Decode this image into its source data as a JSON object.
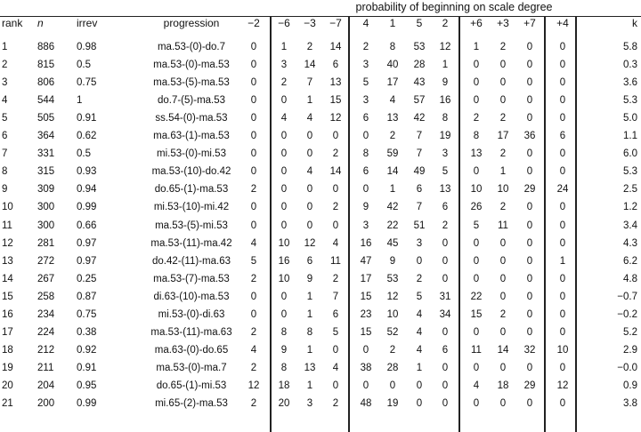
{
  "table": {
    "group_header": "probability of beginning on scale degree",
    "columns": [
      "rank",
      "n",
      "irrev",
      "progression",
      "−2",
      "−6",
      "−3",
      "−7",
      "4",
      "1",
      "5",
      "2",
      "+6",
      "+3",
      "+7",
      "+4",
      "k"
    ],
    "rows": [
      [
        "1",
        "886",
        "0.98",
        "ma.53-(0)-do.7",
        "0",
        "1",
        "2",
        "14",
        "2",
        "8",
        "53",
        "12",
        "1",
        "2",
        "0",
        "0",
        "5.8"
      ],
      [
        "2",
        "815",
        "0.5",
        "ma.53-(0)-ma.53",
        "0",
        "3",
        "14",
        "6",
        "3",
        "40",
        "28",
        "1",
        "0",
        "0",
        "0",
        "0",
        "0.3"
      ],
      [
        "3",
        "806",
        "0.75",
        "ma.53-(5)-ma.53",
        "0",
        "2",
        "7",
        "13",
        "5",
        "17",
        "43",
        "9",
        "0",
        "0",
        "0",
        "0",
        "3.6"
      ],
      [
        "4",
        "544",
        "1",
        "do.7-(5)-ma.53",
        "0",
        "0",
        "1",
        "15",
        "3",
        "4",
        "57",
        "16",
        "0",
        "0",
        "0",
        "0",
        "5.3"
      ],
      [
        "5",
        "505",
        "0.91",
        "ss.54-(0)-ma.53",
        "0",
        "4",
        "4",
        "12",
        "6",
        "13",
        "42",
        "8",
        "2",
        "2",
        "0",
        "0",
        "5.0"
      ],
      [
        "6",
        "364",
        "0.62",
        "ma.63-(1)-ma.53",
        "0",
        "0",
        "0",
        "0",
        "0",
        "2",
        "7",
        "19",
        "8",
        "17",
        "36",
        "6",
        "1.1"
      ],
      [
        "7",
        "331",
        "0.5",
        "mi.53-(0)-mi.53",
        "0",
        "0",
        "0",
        "2",
        "8",
        "59",
        "7",
        "3",
        "13",
        "2",
        "0",
        "0",
        "6.0"
      ],
      [
        "8",
        "315",
        "0.93",
        "ma.53-(10)-do.42",
        "0",
        "0",
        "4",
        "14",
        "6",
        "14",
        "49",
        "5",
        "0",
        "1",
        "0",
        "0",
        "5.3"
      ],
      [
        "9",
        "309",
        "0.94",
        "do.65-(1)-ma.53",
        "2",
        "0",
        "0",
        "0",
        "0",
        "1",
        "6",
        "13",
        "10",
        "10",
        "29",
        "24",
        "2.5"
      ],
      [
        "10",
        "300",
        "0.99",
        "mi.53-(10)-mi.42",
        "0",
        "0",
        "0",
        "2",
        "9",
        "42",
        "7",
        "6",
        "26",
        "2",
        "0",
        "0",
        "1.2"
      ],
      [
        "11",
        "300",
        "0.66",
        "ma.53-(5)-mi.53",
        "0",
        "0",
        "0",
        "0",
        "3",
        "22",
        "51",
        "2",
        "5",
        "11",
        "0",
        "0",
        "3.4"
      ],
      [
        "12",
        "281",
        "0.97",
        "ma.53-(11)-ma.42",
        "4",
        "10",
        "12",
        "4",
        "16",
        "45",
        "3",
        "0",
        "0",
        "0",
        "0",
        "0",
        "4.3"
      ],
      [
        "13",
        "272",
        "0.97",
        "do.42-(11)-ma.63",
        "5",
        "16",
        "6",
        "11",
        "47",
        "9",
        "0",
        "0",
        "0",
        "0",
        "0",
        "1",
        "6.2"
      ],
      [
        "14",
        "267",
        "0.25",
        "ma.53-(7)-ma.53",
        "2",
        "10",
        "9",
        "2",
        "17",
        "53",
        "2",
        "0",
        "0",
        "0",
        "0",
        "0",
        "4.8"
      ],
      [
        "15",
        "258",
        "0.87",
        "di.63-(10)-ma.53",
        "0",
        "0",
        "1",
        "7",
        "15",
        "12",
        "5",
        "31",
        "22",
        "0",
        "0",
        "0",
        "−0.7"
      ],
      [
        "16",
        "234",
        "0.75",
        "mi.53-(0)-di.63",
        "0",
        "0",
        "1",
        "6",
        "23",
        "10",
        "4",
        "34",
        "15",
        "2",
        "0",
        "0",
        "−0.2"
      ],
      [
        "17",
        "224",
        "0.38",
        "ma.53-(11)-ma.63",
        "2",
        "8",
        "8",
        "5",
        "15",
        "52",
        "4",
        "0",
        "0",
        "0",
        "0",
        "0",
        "5.2"
      ],
      [
        "18",
        "212",
        "0.92",
        "ma.63-(0)-do.65",
        "4",
        "9",
        "1",
        "0",
        "0",
        "2",
        "4",
        "6",
        "11",
        "14",
        "32",
        "10",
        "2.9"
      ],
      [
        "19",
        "211",
        "0.91",
        "ma.53-(0)-ma.7",
        "2",
        "8",
        "13",
        "4",
        "38",
        "28",
        "1",
        "0",
        "0",
        "0",
        "0",
        "0",
        "−0.0"
      ],
      [
        "20",
        "204",
        "0.95",
        "do.65-(1)-mi.53",
        "12",
        "18",
        "1",
        "0",
        "0",
        "0",
        "0",
        "0",
        "4",
        "18",
        "29",
        "12",
        "0.9"
      ],
      [
        "21",
        "200",
        "0.99",
        "mi.65-(2)-ma.53",
        "2",
        "20",
        "3",
        "2",
        "48",
        "19",
        "0",
        "0",
        "0",
        "0",
        "0",
        "0",
        "3.8"
      ]
    ]
  }
}
